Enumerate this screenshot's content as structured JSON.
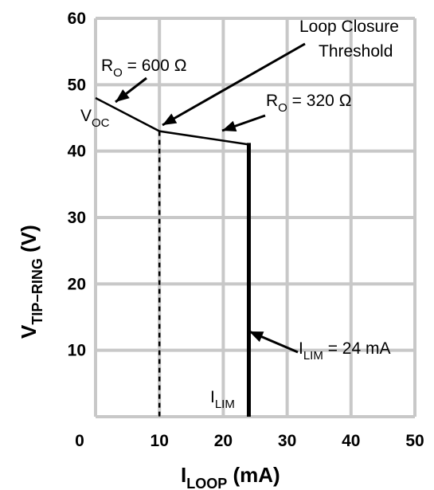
{
  "chart_data": {
    "type": "line",
    "xlim": [
      0,
      50
    ],
    "ylim": [
      0,
      60
    ],
    "grid": true,
    "x_ticks": [
      {
        "value": 0,
        "label": "0"
      },
      {
        "value": 10,
        "label": "10"
      },
      {
        "value": 20,
        "label": "20"
      },
      {
        "value": 30,
        "label": "30"
      },
      {
        "value": 40,
        "label": "40"
      },
      {
        "value": 50,
        "label": "50"
      }
    ],
    "y_ticks": [
      {
        "value": 10,
        "label": "10"
      },
      {
        "value": 20,
        "label": "20"
      },
      {
        "value": 30,
        "label": "30"
      },
      {
        "value": 40,
        "label": "40"
      },
      {
        "value": 50,
        "label": "50"
      },
      {
        "value": 60,
        "label": "60"
      }
    ],
    "xlabel": {
      "main": "I",
      "sub": "LOOP",
      "rest": " (mA)"
    },
    "ylabel": {
      "main": "V",
      "sub": "TIP−RING",
      "rest": " (V)"
    },
    "series": [
      {
        "style": "solid",
        "x": [
          0,
          10,
          24,
          24
        ],
        "y": [
          48,
          43,
          41,
          0
        ]
      },
      {
        "style": "dashed",
        "x": [
          10,
          10
        ],
        "y": [
          43,
          0
        ]
      }
    ],
    "annotations": {
      "ro600": {
        "pre": "R",
        "sub": "O",
        "post": " = 600 Ω"
      },
      "ro320": {
        "pre": "R",
        "sub": "O",
        "post": " = 320 Ω"
      },
      "voc": {
        "pre": "V",
        "sub": "OC"
      },
      "loop_line1": "Loop Closure",
      "loop_line2": "Threshold",
      "ilim_eq": {
        "pre": "I",
        "sub": "LIM",
        "post": " = 24 mA"
      },
      "ilim": {
        "pre": "I",
        "sub": "LIM"
      }
    }
  }
}
